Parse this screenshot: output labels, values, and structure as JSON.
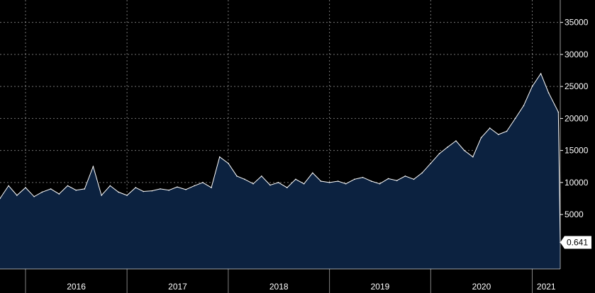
{
  "chart_data": {
    "type": "area",
    "title": "",
    "xlabel": "",
    "ylabel": "",
    "grid": true,
    "ylim": [
      -3500,
      38500
    ],
    "y_axis_side": "right",
    "y_ticks": [
      5000,
      10000,
      15000,
      20000,
      25000,
      30000,
      35000
    ],
    "y_tick_labels": [
      "5000",
      "10000",
      "15000",
      "20000",
      "25000",
      "30000",
      "35000"
    ],
    "x_range": [
      "2015-10-01",
      "2021-04-12"
    ],
    "x_ticks": [
      "2016",
      "2017",
      "2018",
      "2019",
      "2020",
      "2021"
    ],
    "last_value_label": "0.641",
    "colors": {
      "background": "#000000",
      "area_fill": "#0c2240",
      "line": "#ffffff",
      "grid": "#7f7f7f",
      "text": "#ffffff"
    },
    "series": [
      {
        "x": [
          "2015-10",
          "2015-11",
          "2015-12",
          "2016-01",
          "2016-02",
          "2016-03",
          "2016-04",
          "2016-05",
          "2016-06",
          "2016-07",
          "2016-08",
          "2016-09",
          "2016-10",
          "2016-11",
          "2016-12",
          "2017-01",
          "2017-02",
          "2017-03",
          "2017-04",
          "2017-05",
          "2017-06",
          "2017-07",
          "2017-08",
          "2017-09",
          "2017-10",
          "2017-11",
          "2017-12",
          "2018-01",
          "2018-02",
          "2018-03",
          "2018-04",
          "2018-05",
          "2018-06",
          "2018-07",
          "2018-08",
          "2018-09",
          "2018-10",
          "2018-11",
          "2018-12",
          "2019-01",
          "2019-02",
          "2019-03",
          "2019-04",
          "2019-05",
          "2019-06",
          "2019-07",
          "2019-08",
          "2019-09",
          "2019-10",
          "2019-11",
          "2019-12",
          "2020-01",
          "2020-02",
          "2020-03",
          "2020-04",
          "2020-05",
          "2020-06",
          "2020-07",
          "2020-08",
          "2020-09",
          "2020-10",
          "2020-11",
          "2020-12",
          "2021-01",
          "2021-02",
          "2021-03",
          "2021-04-05",
          "2021-04-12"
        ],
        "values": [
          7500,
          9500,
          8000,
          9200,
          7800,
          8500,
          9000,
          8200,
          9500,
          8800,
          9000,
          12500,
          8000,
          9500,
          8500,
          8000,
          9200,
          8600,
          8700,
          9000,
          8800,
          9300,
          8900,
          9500,
          10000,
          9200,
          14000,
          13000,
          11000,
          10500,
          9800,
          11000,
          9600,
          10000,
          9200,
          10500,
          9800,
          11500,
          10200,
          10000,
          10200,
          9800,
          10500,
          10800,
          10200,
          9800,
          10600,
          10300,
          11000,
          10500,
          11500,
          13000,
          14500,
          15500,
          16500,
          15000,
          14000,
          17000,
          18500,
          17500,
          18000,
          20000,
          22000,
          25000,
          27000,
          24000,
          21000,
          641
        ]
      }
    ]
  }
}
